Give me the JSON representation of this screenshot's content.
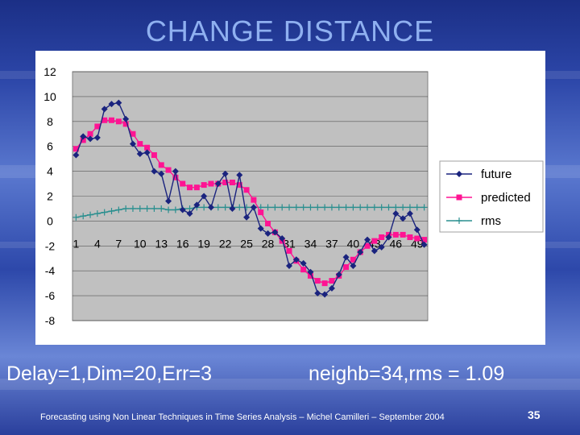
{
  "slide": {
    "title": "CHANGE DISTANCE",
    "caption_left": "Delay=1,Dim=20,Err=3",
    "caption_right": "neighb=34,rms = 1.09",
    "footer": "Forecasting using Non Linear Techniques in Time Series Analysis – Michel Camilleri – September 2004",
    "page_number": "35"
  },
  "chart_data": {
    "type": "line",
    "title": "",
    "xlabel": "",
    "ylabel": "",
    "ylim": [
      -8,
      12
    ],
    "yticks": [
      12,
      10,
      8,
      6,
      4,
      2,
      0,
      -2,
      -4,
      -6,
      -8
    ],
    "xticks": [
      "1",
      "4",
      "7",
      "10",
      "13",
      "16",
      "19",
      "22",
      "25",
      "28",
      "31",
      "34",
      "37",
      "40",
      "43",
      "46",
      "49"
    ],
    "x": [
      1,
      2,
      3,
      4,
      5,
      6,
      7,
      8,
      9,
      10,
      11,
      12,
      13,
      14,
      15,
      16,
      17,
      18,
      19,
      20,
      21,
      22,
      23,
      24,
      25,
      26,
      27,
      28,
      29,
      30,
      31,
      32,
      33,
      34,
      35,
      36,
      37,
      38,
      39,
      40,
      41,
      42,
      43,
      44,
      45,
      46,
      47,
      48,
      49,
      50
    ],
    "grid": true,
    "legend_position": "right",
    "series": [
      {
        "name": "future",
        "color": "#1a237e",
        "marker": "diamond",
        "values": [
          5.3,
          6.8,
          6.6,
          6.7,
          9.0,
          9.4,
          9.5,
          8.2,
          6.2,
          5.4,
          5.5,
          4.0,
          3.8,
          1.6,
          4.0,
          0.9,
          0.6,
          1.3,
          2.0,
          1.1,
          3.0,
          3.8,
          1.0,
          3.7,
          0.3,
          1.1,
          -0.6,
          -1.0,
          -0.9,
          -1.4,
          -3.6,
          -3.1,
          -3.4,
          -4.1,
          -5.8,
          -5.9,
          -5.4,
          -4.3,
          -2.9,
          -3.6,
          -2.5,
          -1.5,
          -2.4,
          -2.1,
          -1.3,
          0.6,
          0.2,
          0.6,
          -0.7,
          -1.9
        ]
      },
      {
        "name": "predicted",
        "color": "#ff1493",
        "marker": "square",
        "values": [
          5.8,
          6.5,
          7.0,
          7.6,
          8.1,
          8.1,
          8.0,
          7.8,
          7.0,
          6.2,
          5.9,
          5.3,
          4.5,
          4.1,
          3.5,
          3.0,
          2.7,
          2.7,
          2.9,
          3.0,
          3.0,
          3.1,
          3.1,
          2.9,
          2.5,
          1.7,
          0.7,
          -0.2,
          -0.9,
          -1.6,
          -2.4,
          -3.2,
          -3.9,
          -4.4,
          -4.8,
          -5.0,
          -4.8,
          -4.4,
          -3.7,
          -3.1,
          -2.5,
          -2.0,
          -1.6,
          -1.3,
          -1.1,
          -1.1,
          -1.1,
          -1.3,
          -1.4,
          -1.5
        ]
      },
      {
        "name": "rms",
        "color": "#2a8f8f",
        "marker": "plus",
        "values": [
          0.3,
          0.4,
          0.5,
          0.6,
          0.7,
          0.8,
          0.9,
          1.0,
          1.0,
          1.0,
          1.0,
          1.0,
          1.0,
          0.9,
          0.9,
          1.0,
          1.0,
          1.1,
          1.1,
          1.1,
          1.1,
          1.1,
          1.1,
          1.1,
          1.1,
          1.1,
          1.1,
          1.1,
          1.1,
          1.1,
          1.1,
          1.1,
          1.1,
          1.1,
          1.1,
          1.1,
          1.1,
          1.1,
          1.1,
          1.1,
          1.1,
          1.1,
          1.1,
          1.1,
          1.1,
          1.1,
          1.1,
          1.1,
          1.1,
          1.1
        ]
      }
    ]
  }
}
